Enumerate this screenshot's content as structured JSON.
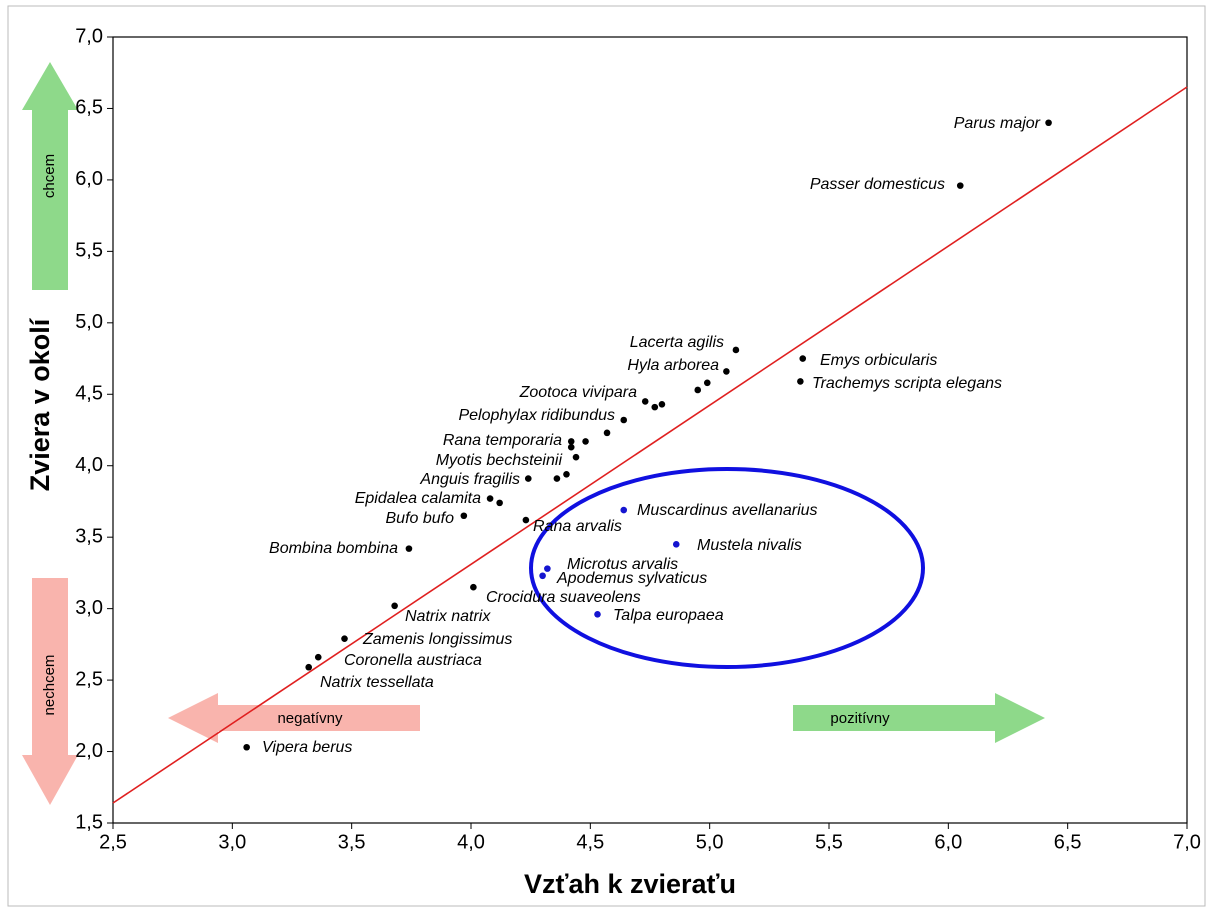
{
  "chart_data": {
    "type": "scatter",
    "xlabel": "Vzťah k zvieraťu",
    "ylabel": "Zviera v okolí",
    "annotations": [
      "chcem",
      "nechcem",
      "negatívny",
      "pozitívny"
    ],
    "xlim": [
      2.5,
      7.0
    ],
    "ylim": [
      1.5,
      7.0
    ],
    "xticks": [
      {
        "value": 2.5,
        "label": "2,5"
      },
      {
        "value": 3.0,
        "label": "3,0"
      },
      {
        "value": 3.5,
        "label": "3,5"
      },
      {
        "value": 4.0,
        "label": "4,0"
      },
      {
        "value": 4.5,
        "label": "4,5"
      },
      {
        "value": 5.0,
        "label": "5,0"
      },
      {
        "value": 5.5,
        "label": "5,5"
      },
      {
        "value": 6.0,
        "label": "6,0"
      },
      {
        "value": 6.5,
        "label": "6,5"
      },
      {
        "value": 7.0,
        "label": "7,0"
      }
    ],
    "yticks": [
      {
        "value": 1.5,
        "label": "1,5"
      },
      {
        "value": 2.0,
        "label": "2,0"
      },
      {
        "value": 2.5,
        "label": "2,5"
      },
      {
        "value": 3.0,
        "label": "3,0"
      },
      {
        "value": 3.5,
        "label": "3,5"
      },
      {
        "value": 4.0,
        "label": "4,0"
      },
      {
        "value": 4.5,
        "label": "4,5"
      },
      {
        "value": 5.0,
        "label": "5,0"
      },
      {
        "value": 5.5,
        "label": "5,5"
      },
      {
        "value": 6.0,
        "label": "6,0"
      },
      {
        "value": 6.5,
        "label": "6,5"
      },
      {
        "value": 7.0,
        "label": "7,0"
      }
    ],
    "fit_line": {
      "color": "#e02020",
      "x": [
        2.5,
        7.0
      ],
      "y": [
        1.64,
        6.65
      ]
    },
    "series": [
      {
        "color": "#000000",
        "x": [
          6.42,
          6.05,
          5.11,
          5.07,
          4.99,
          4.95,
          4.8,
          4.77,
          4.73,
          4.64,
          4.57,
          4.48,
          4.42,
          4.42,
          4.44,
          4.4,
          4.36,
          4.24,
          4.12,
          4.08,
          3.97,
          4.23,
          3.74,
          4.01,
          3.68,
          3.47,
          3.36,
          3.32,
          3.06,
          5.39,
          5.38
        ],
        "y": [
          6.4,
          5.96,
          4.81,
          4.66,
          4.58,
          4.53,
          4.43,
          4.41,
          4.45,
          4.32,
          4.23,
          4.17,
          4.17,
          4.13,
          4.06,
          3.94,
          3.91,
          3.91,
          3.74,
          3.77,
          3.65,
          3.62,
          3.42,
          3.15,
          3.02,
          2.79,
          2.66,
          2.59,
          2.03,
          4.75,
          4.59
        ],
        "labels": [
          "Parus major",
          "Passer domesticus",
          "Lacerta agilis",
          "Hyla arborea",
          null,
          null,
          null,
          null,
          "Zootoca vivipara",
          "Pelophylax ridibundus",
          null,
          null,
          "Rana temporaria",
          null,
          "Myotis bechsteinii",
          null,
          null,
          "Anguis fragilis",
          null,
          "Epidalea calamita",
          "Bufo bufo",
          "Rana arvalis",
          "Bombina bombina",
          "Crocidura suaveolens",
          "Natrix natrix",
          "Zamenis longissimus",
          "Coronella austriaca",
          "Natrix tessellata",
          "Vipera berus",
          "Emys orbicularis",
          "Trachemys scripta elegans"
        ]
      },
      {
        "color": "#1515d0",
        "x": [
          4.64,
          4.86,
          4.32,
          4.3,
          4.53
        ],
        "y": [
          3.69,
          3.45,
          3.28,
          3.23,
          2.96
        ],
        "labels": [
          "Muscardinus avellanarius",
          "Mustela nivalis",
          "Microtus arvalis",
          "Apodemus sylvaticus",
          "Talpa europaea"
        ]
      }
    ]
  }
}
